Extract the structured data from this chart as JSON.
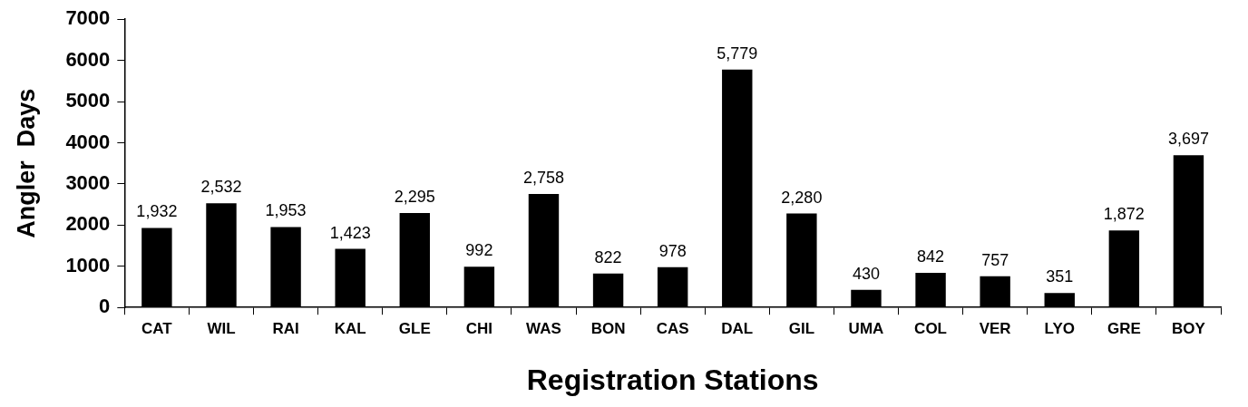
{
  "chart_data": {
    "type": "bar",
    "xlabel": "Registration Stations",
    "ylabel": "Angler  Days",
    "categories": [
      "CAT",
      "WIL",
      "RAI",
      "KAL",
      "GLE",
      "CHI",
      "WAS",
      "BON",
      "CAS",
      "DAL",
      "GIL",
      "UMA",
      "COL",
      "VER",
      "LYO",
      "GRE",
      "BOY"
    ],
    "values": [
      1932,
      2532,
      1953,
      1423,
      2295,
      992,
      2758,
      822,
      978,
      5779,
      2280,
      430,
      842,
      757,
      351,
      1872,
      3697
    ],
    "value_labels": [
      "1,932",
      "2,532",
      "1,953",
      "1,423",
      "2,295",
      "992",
      "2,758",
      "822",
      "978",
      "5,779",
      "2,280",
      "430",
      "842",
      "757",
      "351",
      "1,872",
      "3,697"
    ],
    "color": "#000000",
    "ylim": [
      0,
      7000
    ],
    "yticks": [
      0,
      1000,
      2000,
      3000,
      4000,
      5000,
      6000,
      7000
    ],
    "grid": false,
    "legend": false
  }
}
